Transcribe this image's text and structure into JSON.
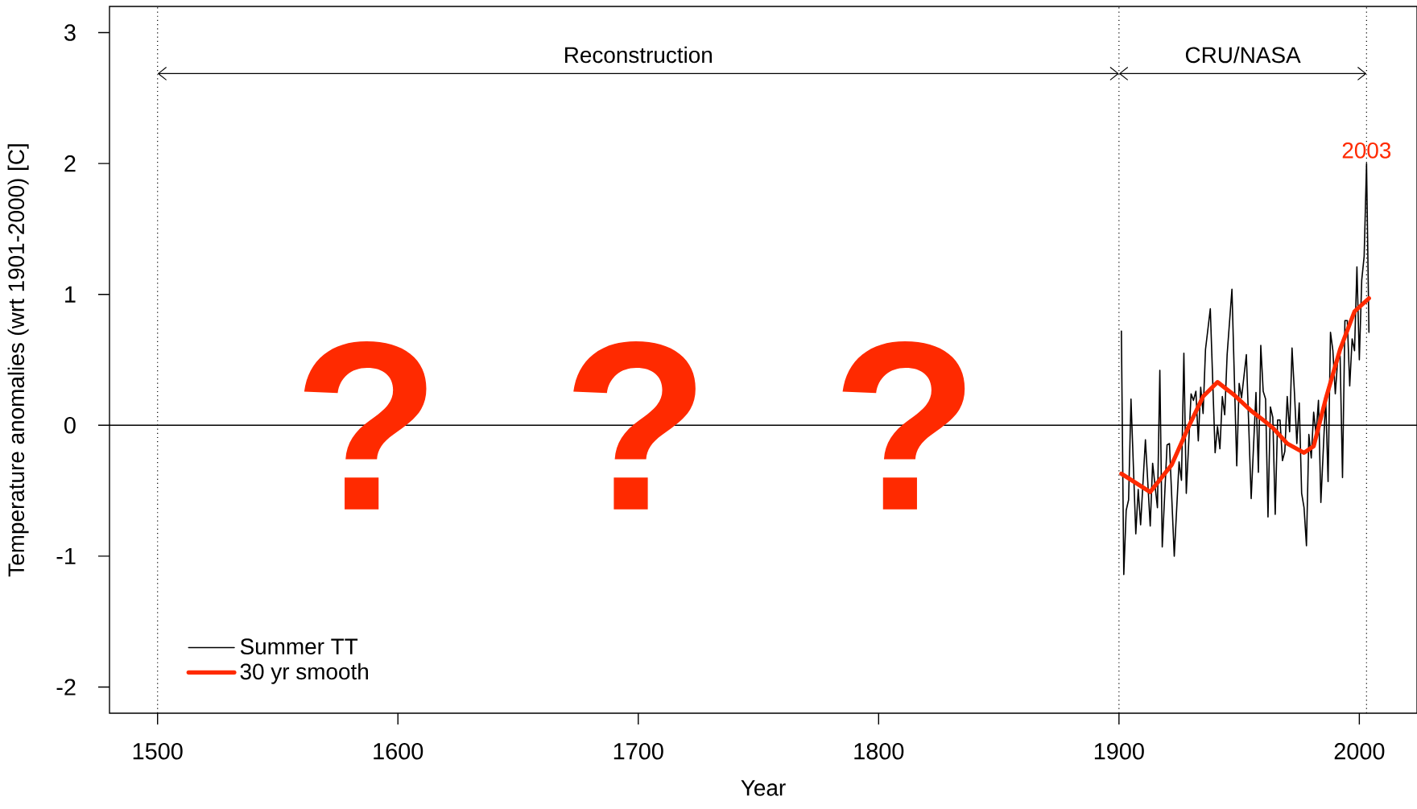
{
  "chart_data": {
    "type": "line",
    "xlabel": "Year",
    "ylabel": "Temperature anomalies (wrt 1901-2000) [C]",
    "xlim": [
      1480,
      2024
    ],
    "ylim": [
      -2.2,
      3.2
    ],
    "xticks": [
      1500,
      1600,
      1700,
      1800,
      1900,
      2000
    ],
    "yticks": [
      -2,
      -1,
      0,
      1,
      2,
      3
    ],
    "legend": "bottom left",
    "marker": "none",
    "grid": false,
    "series": [
      {
        "name": "Summer TT",
        "color": "#000000",
        "x": [
          1901,
          1902,
          1903,
          1904,
          1905,
          1907,
          1908,
          1909,
          1911,
          1913,
          1914,
          1916,
          1917,
          1918,
          1920,
          1921,
          1923,
          1925,
          1926,
          1927,
          1928,
          1930,
          1931,
          1932,
          1933,
          1934,
          1935,
          1936,
          1938,
          1940,
          1941,
          1942,
          1943,
          1944,
          1945,
          1947,
          1949,
          1950,
          1951,
          1953,
          1955,
          1957,
          1958,
          1959,
          1960,
          1961,
          1962,
          1963,
          1964,
          1965,
          1966,
          1967,
          1968,
          1969,
          1970,
          1971,
          1972,
          1973,
          1974,
          1975,
          1976,
          1977,
          1978,
          1979,
          1980,
          1981,
          1982,
          1983,
          1984,
          1986,
          1987,
          1988,
          1989,
          1990,
          1991,
          1992,
          1993,
          1994,
          1995,
          1996,
          1997,
          1998,
          1999,
          2000,
          2001,
          2002,
          2003,
          2004
        ],
        "values": [
          0.72,
          -1.14,
          -0.65,
          -0.57,
          0.2,
          -0.83,
          -0.49,
          -0.76,
          -0.11,
          -0.77,
          -0.29,
          -0.63,
          0.42,
          -0.93,
          -0.15,
          -0.14,
          -1.0,
          -0.28,
          -0.42,
          0.55,
          -0.52,
          0.24,
          0.19,
          0.26,
          -0.12,
          0.29,
          0.09,
          0.58,
          0.89,
          -0.21,
          -0.01,
          -0.18,
          0.22,
          0.08,
          0.54,
          1.04,
          -0.31,
          0.32,
          0.21,
          0.54,
          -0.56,
          0.25,
          -0.36,
          0.61,
          0.26,
          0.2,
          -0.7,
          0.14,
          0.06,
          -0.68,
          0.04,
          0.04,
          -0.27,
          -0.2,
          0.22,
          -0.05,
          0.59,
          0.25,
          -0.14,
          0.17,
          -0.52,
          -0.63,
          -0.92,
          -0.07,
          -0.25,
          0.1,
          -0.07,
          0.19,
          -0.59,
          0.21,
          -0.43,
          0.71,
          0.57,
          0.24,
          0.5,
          0.53,
          -0.4,
          0.8,
          0.8,
          0.3,
          0.66,
          0.57,
          1.21,
          0.5,
          1.11,
          1.29,
          2.0,
          0.71
        ]
      },
      {
        "name": "30 yr smooth",
        "color": "#ff2a00",
        "x": [
          1901,
          1913,
          1922,
          1929,
          1935,
          1941,
          1948,
          1955,
          1960,
          1964,
          1970,
          1977,
          1981,
          1986,
          1992,
          1998,
          2004
        ],
        "values": [
          -0.37,
          -0.51,
          -0.3,
          -0.01,
          0.22,
          0.33,
          0.23,
          0.11,
          0.04,
          -0.02,
          -0.14,
          -0.21,
          -0.16,
          0.2,
          0.58,
          0.87,
          0.97
        ]
      }
    ],
    "ref_lines": [
      {
        "axis": "x",
        "value": 1500,
        "line_style": "dotted"
      },
      {
        "axis": "x",
        "value": 1900,
        "line_style": "dotted"
      },
      {
        "axis": "x",
        "value": 2003,
        "line_style": "dotted"
      },
      {
        "axis": "y",
        "value": 0,
        "line_style": "solid"
      }
    ],
    "annotations": [
      "Reconstruction",
      "CRU/NASA",
      {
        "text": "?",
        "x": 1587,
        "y": 0
      },
      {
        "text": "?",
        "x": 1699,
        "y": 0
      },
      {
        "text": "?",
        "x": 1811,
        "y": 0
      },
      {
        "text": "2003",
        "x": 2003,
        "y": 2.0
      }
    ]
  }
}
